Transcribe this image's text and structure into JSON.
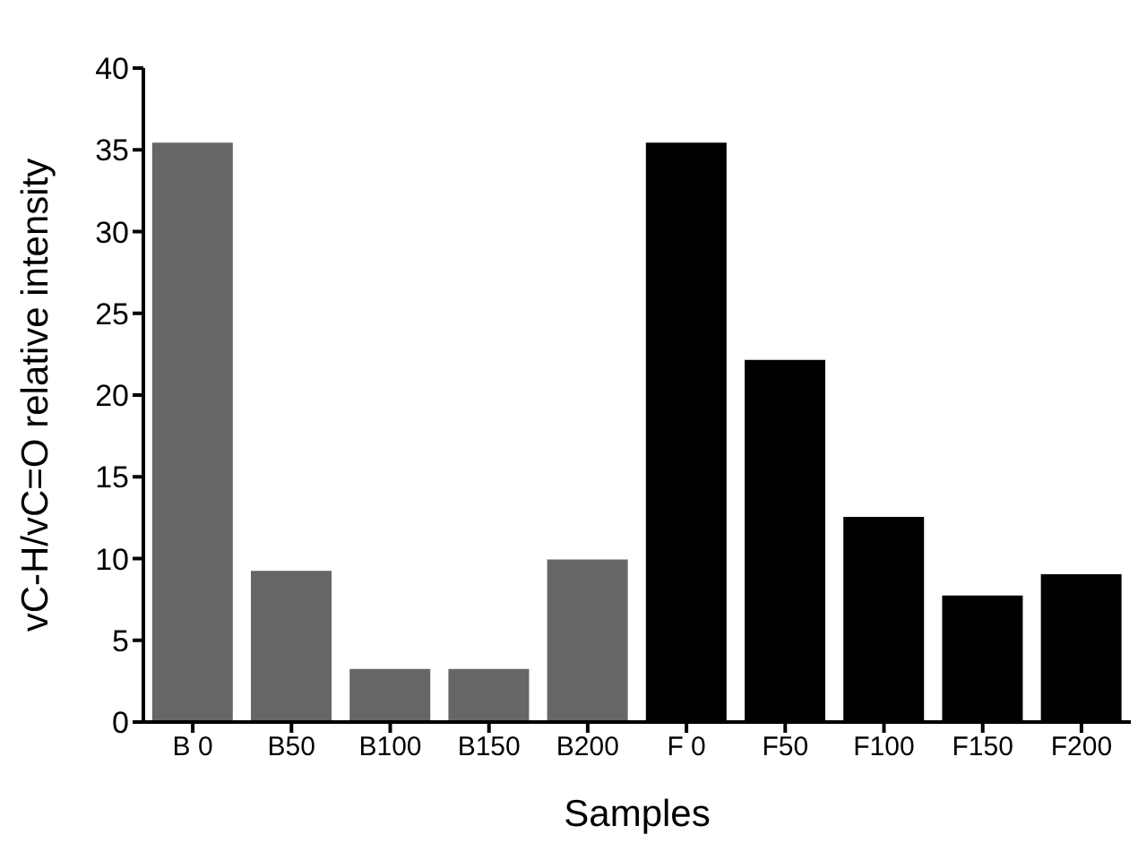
{
  "chart_data": {
    "type": "bar",
    "xlabel": "Samples",
    "ylabel": "vC-H/vC=O relative intensity",
    "categories": [
      "B 0",
      "B50",
      "B100",
      "B150",
      "B200",
      "F 0",
      "F50",
      "F100",
      "F150",
      "F200"
    ],
    "values": [
      35.5,
      9.3,
      3.3,
      3.3,
      10.0,
      35.5,
      22.2,
      12.6,
      7.8,
      9.1
    ],
    "colors": [
      "#666666",
      "#666666",
      "#666666",
      "#666666",
      "#666666",
      "#000000",
      "#000000",
      "#000000",
      "#000000",
      "#000000"
    ],
    "ylim": [
      0,
      40
    ],
    "yticks": [
      0,
      5,
      10,
      15,
      20,
      25,
      30,
      35,
      40
    ],
    "grid": false,
    "legend": false
  }
}
